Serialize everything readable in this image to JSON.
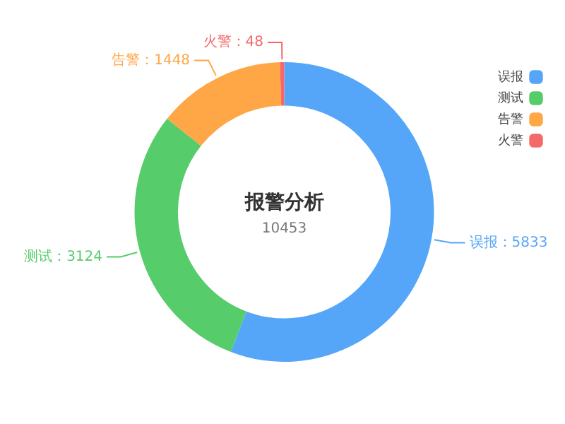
{
  "chart_data": {
    "type": "donut",
    "title": "报警分析",
    "subtitle": "10453",
    "categories": [
      "误报",
      "测试",
      "告警",
      "火警"
    ],
    "values": [
      5833,
      3124,
      1448,
      48
    ],
    "colors": [
      "#55a6f8",
      "#56cc6a",
      "#ffa646",
      "#f56868"
    ],
    "value_labels": [
      "：5833",
      "：3124",
      "：1448",
      "：48"
    ],
    "legend": "top right"
  }
}
